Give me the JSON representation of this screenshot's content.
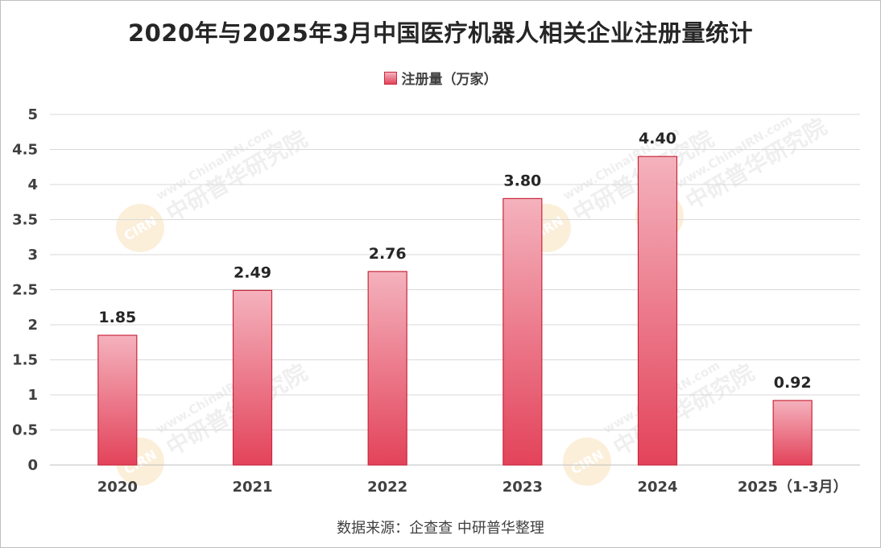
{
  "chart_data": {
    "type": "bar",
    "title": "2020年与2025年3月中国医疗机器人相关企业注册量统计",
    "legend": "注册量（万家）",
    "legend_position": "top",
    "categories": [
      "2020",
      "2021",
      "2022",
      "2023",
      "2024",
      "2025（1-3月）"
    ],
    "series": [
      {
        "name": "注册量（万家）",
        "values": [
          1.85,
          2.49,
          2.76,
          3.8,
          4.4,
          0.92
        ]
      }
    ],
    "data_labels": [
      "1.85",
      "2.49",
      "2.76",
      "3.80",
      "4.40",
      "0.92"
    ],
    "y_ticks": [
      "0",
      "0.5",
      "1",
      "1.5",
      "2",
      "2.5",
      "3",
      "3.5",
      "4",
      "4.5",
      "5"
    ],
    "ylim": [
      0,
      5
    ],
    "grid": true,
    "bar_color": "#e3435a",
    "bar_color_light": "#f4b2bd",
    "source": "数据来源：企查查 中研普华整理"
  },
  "watermark": {
    "url": "www.ChinaIRN.com",
    "name": "中研普华研究院",
    "logo": "CIRN"
  }
}
